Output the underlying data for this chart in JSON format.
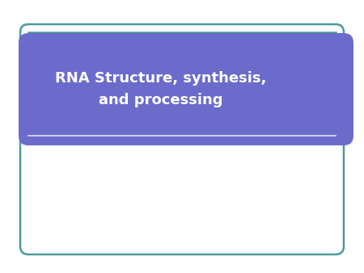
{
  "title_text": "RNA Structure, synthesis,\nand processing",
  "background_color": "#ffffff",
  "banner_color": "#6b6bcc",
  "border_color": "#4d9999",
  "text_color": "#ffffff",
  "title_fontsize": 13,
  "fig_width": 4.5,
  "fig_height": 3.38
}
